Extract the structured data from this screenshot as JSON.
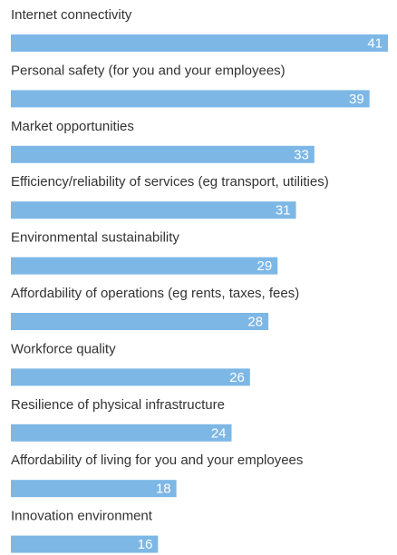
{
  "chart_data": {
    "type": "bar",
    "orientation": "horizontal",
    "color": "#7db7e6",
    "categories": [
      "Internet connectivity",
      "Personal safety (for you and your employees)",
      "Market opportunities",
      "Efficiency/reliability of services (eg transport, utilities)",
      "Environmental sustainability",
      "Affordability of operations (eg rents, taxes, fees)",
      "Workforce quality",
      "Resilience of physical infrastructure",
      "Affordability of living for you and your employees",
      "Innovation environment"
    ],
    "values": [
      41,
      39,
      33,
      31,
      29,
      28,
      26,
      24,
      18,
      16
    ]
  }
}
